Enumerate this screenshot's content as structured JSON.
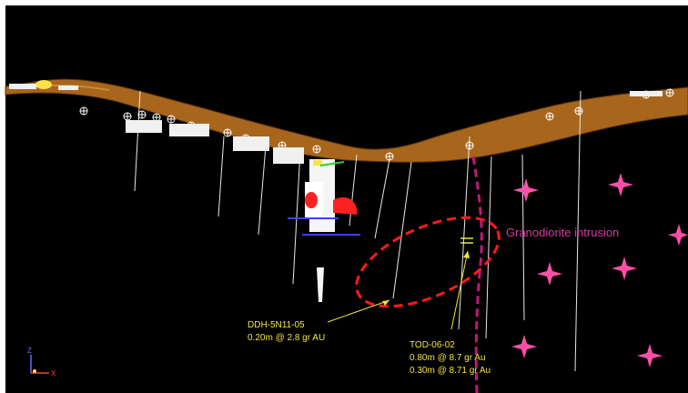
{
  "colors": {
    "background": "#000000",
    "terrain": "#a8651c",
    "terrain_edge": "#5a330a",
    "drillhole": "#e8e8e8",
    "marker": "#ffffff",
    "callout_text": "#f2e43a",
    "intrusion_label": "#d63ba0",
    "intrusion_star": "#ff4fa8",
    "contact_line": "#c2187a",
    "target_ellipse": "#ff1a1a",
    "axis_z": "#6b6bff",
    "axis_x": "#ff4040"
  },
  "view": {
    "axis_z_label": "Z",
    "axis_x_label": "X"
  },
  "annotations": {
    "intrusion": "Granodiorite intrusion",
    "ddh": {
      "hole": "DDH-5N11-05",
      "line1": "0.20m @ 2.8 gr AU"
    },
    "tod": {
      "hole": "TOD-06-02",
      "line1": "0.80m @ 8.7 gr Au",
      "line2": "0.30m @ 8.71 gr Au"
    }
  },
  "icons": [
    "intrusion-star-icon",
    "axis-triad-icon",
    "drill-collar-marker-icon"
  ]
}
